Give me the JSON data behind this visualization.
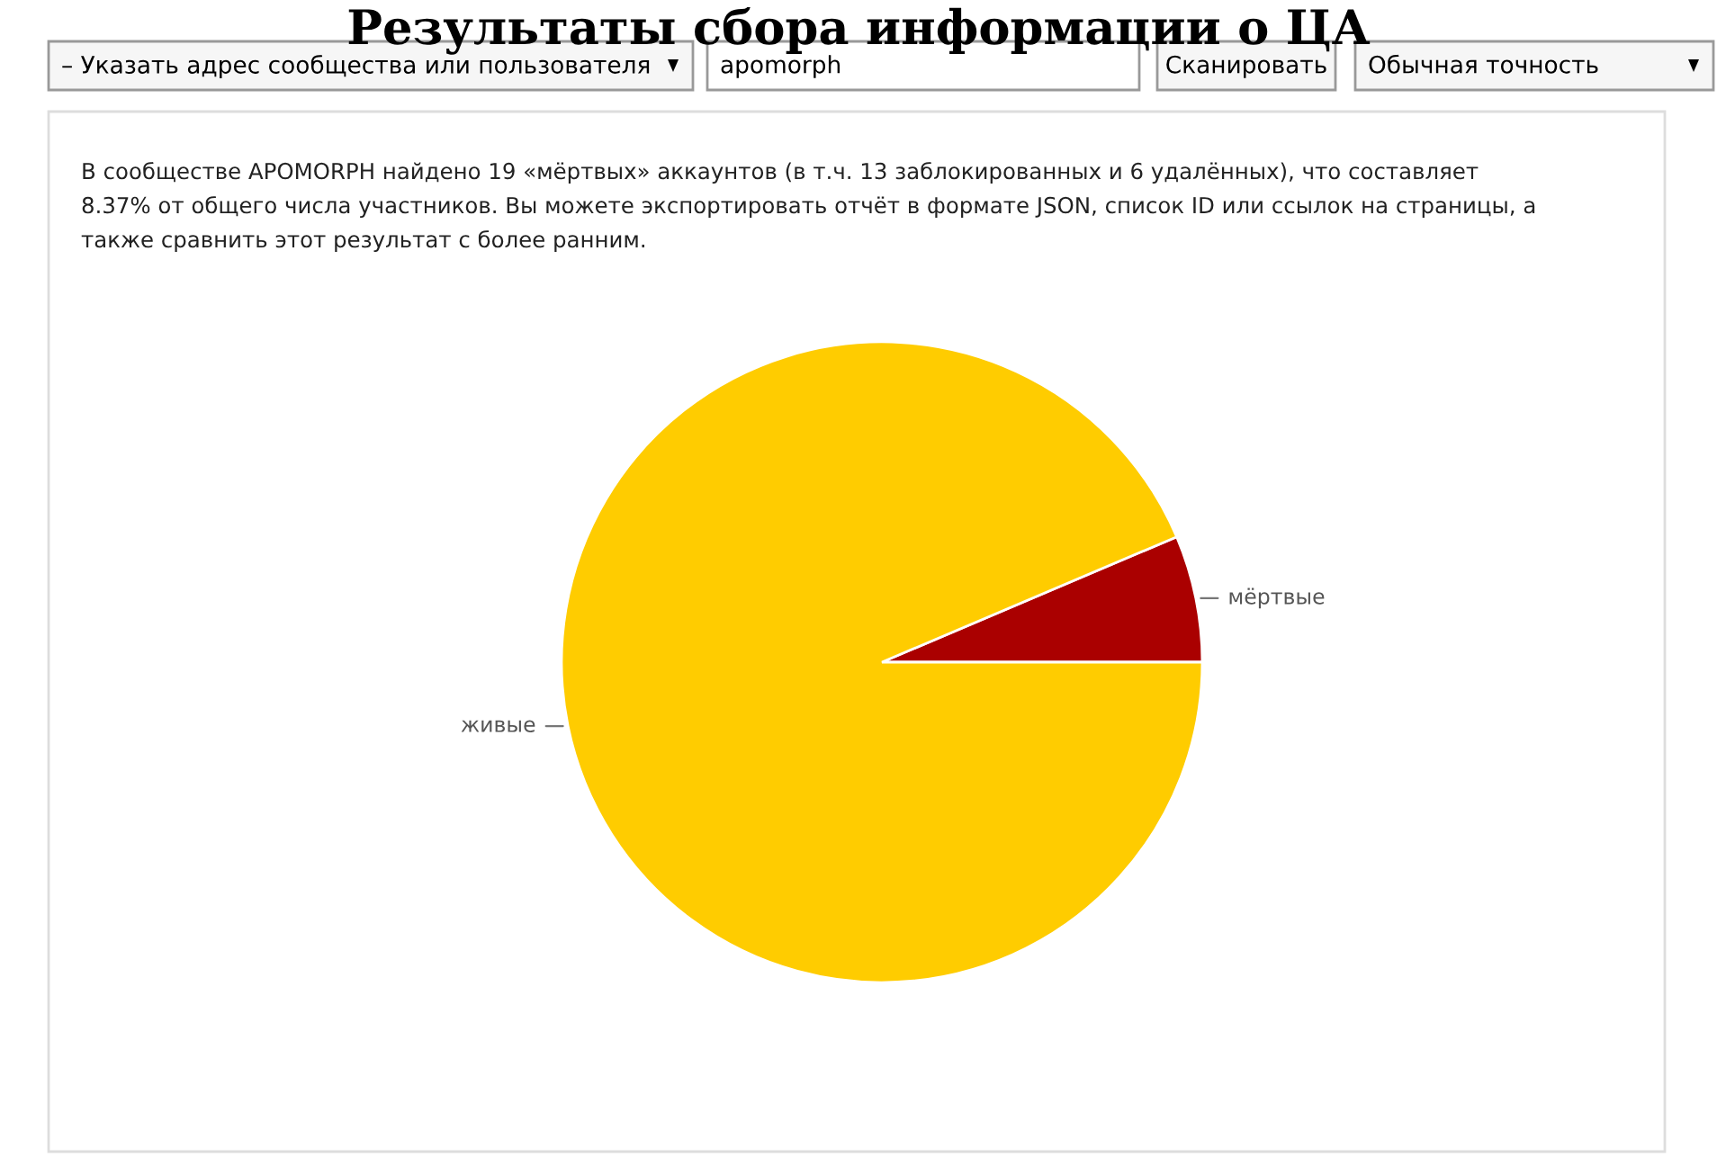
{
  "chart_data": {
    "type": "pie",
    "title": "Результаты сбора информации о ЦА",
    "categories": [
      "мёртвые",
      "живые"
    ],
    "values": [
      6.4,
      93.6
    ],
    "colors": [
      "#aa0000",
      "#ffcc00"
    ],
    "annotations": [
      "– Указать адрес сообщества или пользователя",
      "apomorph",
      "Сканировать",
      "Обычная точность",
      "В сообществе APOMORPH найдено 19 «мёртвых» аккаунтов (в т.ч. 13 заблокированных и 6 удалённых), что составляет",
      "8.37% от общего числа участников. Вы можете экспортировать отчёт в формате JSON, список ID или ссылок на страницы, а",
      "также сравнить этот результат с более ранним."
    ]
  }
}
